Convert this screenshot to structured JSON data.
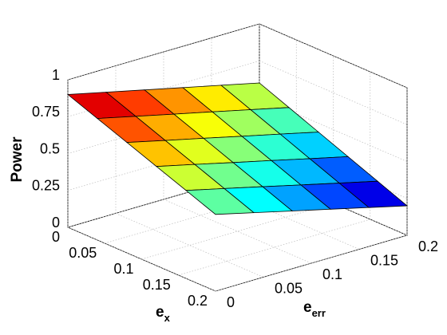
{
  "chart_data": {
    "type": "surface",
    "zlabel": "Power",
    "xlabel": [
      "e",
      "x"
    ],
    "ylabel": [
      "e",
      "err"
    ],
    "x": [
      0,
      0.04,
      0.08,
      0.12,
      0.16,
      0.2
    ],
    "y": [
      0,
      0.04,
      0.08,
      0.12,
      0.16,
      0.2
    ],
    "z": [
      [
        0.9,
        0.84,
        0.78,
        0.72,
        0.66,
        0.6
      ],
      [
        0.824,
        0.763,
        0.702,
        0.642,
        0.581,
        0.52
      ],
      [
        0.748,
        0.686,
        0.625,
        0.563,
        0.502,
        0.44
      ],
      [
        0.672,
        0.61,
        0.547,
        0.485,
        0.422,
        0.36
      ],
      [
        0.596,
        0.533,
        0.47,
        0.406,
        0.343,
        0.28
      ],
      [
        0.52,
        0.456,
        0.392,
        0.328,
        0.264,
        0.2
      ]
    ],
    "xlim": [
      0,
      0.2
    ],
    "xticks": [
      0,
      0.05,
      0.1,
      0.15,
      0.2
    ],
    "ylim": [
      0,
      0.2
    ],
    "yticks": [
      0,
      0.05,
      0.1,
      0.15,
      0.2
    ],
    "zlim": [
      0,
      1
    ],
    "zticks": [
      0,
      0.25,
      0.5,
      0.75,
      1
    ],
    "colormap": "jet",
    "grid": true
  }
}
